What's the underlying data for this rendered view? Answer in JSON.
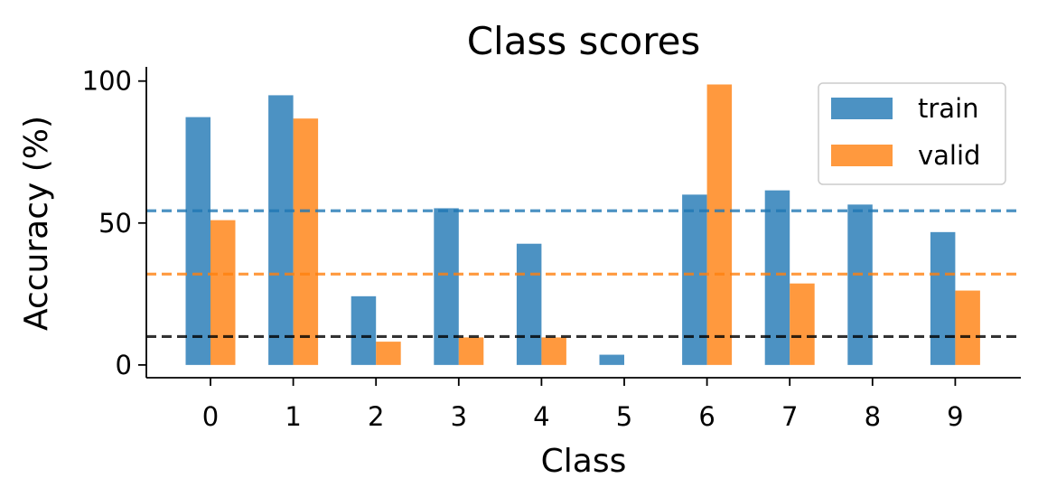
{
  "chart_data": {
    "type": "bar",
    "title": "Class scores",
    "xlabel": "Class",
    "ylabel": "Accuracy (%)",
    "categories": [
      "0",
      "1",
      "2",
      "3",
      "4",
      "5",
      "6",
      "7",
      "8",
      "9"
    ],
    "series": [
      {
        "name": "train",
        "color": "#1f77b4",
        "values": [
          87.3,
          95.0,
          24.2,
          55.2,
          42.7,
          3.6,
          60.0,
          61.5,
          56.5,
          46.8
        ]
      },
      {
        "name": "valid",
        "color": "#ff7f0e",
        "values": [
          51.0,
          86.8,
          8.2,
          9.7,
          9.7,
          0.0,
          98.8,
          28.7,
          0.0,
          26.2
        ]
      }
    ],
    "reference_lines": [
      {
        "value": 54.3,
        "color": "#1f77b4",
        "style": "dashed"
      },
      {
        "value": 32.0,
        "color": "#ff7f0e",
        "style": "dashed"
      },
      {
        "value": 10.0,
        "color": "#000000",
        "style": "dashed"
      }
    ],
    "yticks": [
      0,
      50,
      100
    ],
    "ylim": [
      -4.5,
      105
    ],
    "legend": "top-right",
    "grid": false
  }
}
